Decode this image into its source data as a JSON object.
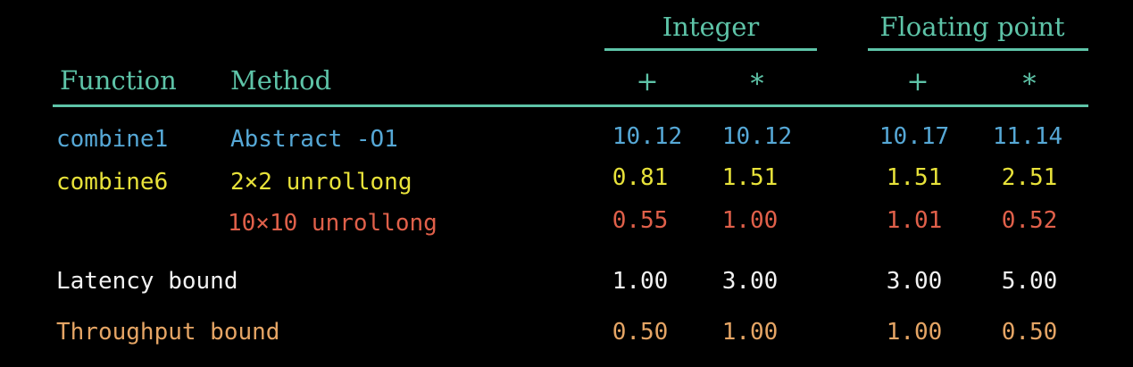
{
  "colors": {
    "header": "#5ec4a8",
    "row_blue": "#56a8d6",
    "row_yellow": "#e8e23a",
    "row_red": "#e0604a",
    "row_white": "#f2f2f2",
    "row_orange": "#e5a565"
  },
  "header": {
    "group_integer": "Integer",
    "group_float": "Floating point",
    "col_function": "Function",
    "col_method": "Method",
    "int_add": "+",
    "int_mul": "*",
    "fp_add": "+",
    "fp_mul": "*"
  },
  "rows": [
    {
      "function": "combine1",
      "method": "Abstract -O1",
      "int_add": "10.12",
      "int_mul": "10.12",
      "fp_add": "10.17",
      "fp_mul": "11.14"
    },
    {
      "function": "combine6",
      "method": "2×2 unrollong",
      "int_add": "0.81",
      "int_mul": "1.51",
      "fp_add": "1.51",
      "fp_mul": "2.51"
    },
    {
      "function": "",
      "method": "10×10 unrollong",
      "int_add": "0.55",
      "int_mul": "1.00",
      "fp_add": "1.01",
      "fp_mul": "0.52"
    },
    {
      "function": "Latency bound",
      "method": "",
      "int_add": "1.00",
      "int_mul": "3.00",
      "fp_add": "3.00",
      "fp_mul": "5.00"
    },
    {
      "function": "Throughput bound",
      "method": "",
      "int_add": "0.50",
      "int_mul": "1.00",
      "fp_add": "1.00",
      "fp_mul": "0.50"
    }
  ]
}
